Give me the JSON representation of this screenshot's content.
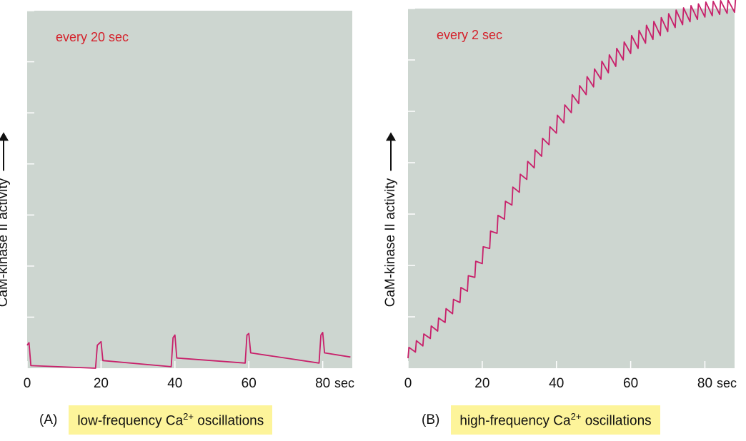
{
  "chart_data": [
    {
      "type": "line",
      "panel_label": "(A)",
      "caption": "low-frequency Ca",
      "caption_sup": "2+",
      "caption_tail": " oscillations",
      "annotation": "every 20 sec",
      "ylabel": "CaM-kinase II activity",
      "xlabel": "sec",
      "x_ticks": [
        0,
        20,
        40,
        60,
        80
      ],
      "xlim": [
        0,
        88
      ],
      "ylim": [
        0,
        7
      ],
      "y_tick_count": 7,
      "pulse_interval": 20,
      "series": [
        {
          "x": [
            0,
            0.5,
            1,
            18.5,
            19,
            20,
            20.5,
            39,
            39.5,
            40,
            40.5,
            59,
            59.5,
            60,
            60.5,
            79,
            79.5,
            80,
            80.5,
            87.5
          ],
          "y": [
            0.45,
            0.5,
            0.05,
            0.0,
            0.45,
            0.52,
            0.15,
            0.03,
            0.6,
            0.65,
            0.2,
            0.1,
            0.65,
            0.68,
            0.3,
            0.1,
            0.65,
            0.7,
            0.3,
            0.22
          ]
        }
      ]
    },
    {
      "type": "line",
      "panel_label": "(B)",
      "caption": "high-frequency Ca",
      "caption_sup": "2+",
      "caption_tail": " oscillations",
      "annotation": "every 2 sec",
      "ylabel": "CaM-kinase II activity",
      "xlabel": "sec",
      "x_ticks": [
        0,
        20,
        40,
        60,
        80
      ],
      "xlim": [
        0,
        88
      ],
      "ylim": [
        0,
        7
      ],
      "y_tick_count": 7,
      "pulse_interval": 2,
      "series": [
        {
          "x": [
            0,
            4,
            8,
            12,
            16,
            20,
            24,
            28,
            32,
            36,
            40,
            44,
            48,
            52,
            56,
            60,
            64,
            68,
            72,
            76,
            80,
            84,
            88
          ],
          "y": [
            0.3,
            0.55,
            0.85,
            1.2,
            1.65,
            2.2,
            2.8,
            3.35,
            3.85,
            4.3,
            4.75,
            5.15,
            5.5,
            5.8,
            6.05,
            6.3,
            6.5,
            6.65,
            6.8,
            6.9,
            6.98,
            7.02,
            7.05
          ]
        }
      ]
    }
  ],
  "colors": {
    "plot_bg": "#cdd6d0",
    "trace": "#c8206a",
    "annotation": "#d4202a",
    "highlight": "#fdf49a"
  }
}
